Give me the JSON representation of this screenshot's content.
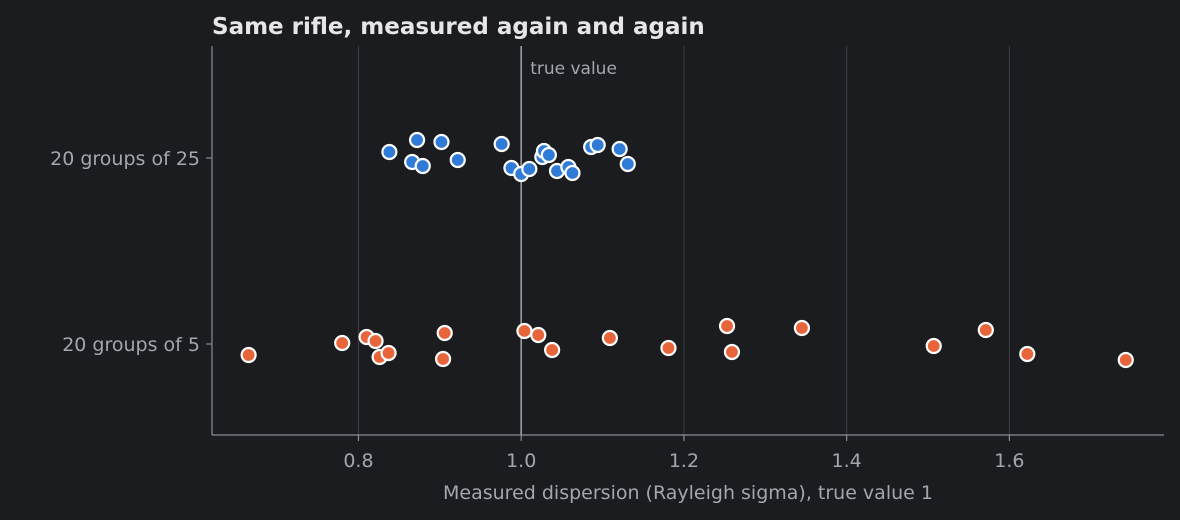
{
  "chart_data": {
    "type": "scatter",
    "title": "Same rifle, measured again and again",
    "xlabel": "Measured dispersion (Rayleigh sigma), true value 1",
    "ylabel": "",
    "xlim": [
      0.62,
      1.79
    ],
    "xticks": [
      0.8,
      1.0,
      1.2,
      1.4,
      1.6
    ],
    "xtick_labels": [
      "0.8",
      "1.0",
      "1.2",
      "1.4",
      "1.6"
    ],
    "categories": [
      "20 groups of 25",
      "20 groups of 5"
    ],
    "grid": "vertical",
    "reference_line": {
      "x": 1.0,
      "label": "true value"
    },
    "series": [
      {
        "category": "20 groups of 25",
        "color": "#2f7bd6",
        "values": [
          0.838,
          0.866,
          0.872,
          0.879,
          0.902,
          0.922,
          0.976,
          0.988,
          1.0,
          1.01,
          1.026,
          1.028,
          1.034,
          1.044,
          1.058,
          1.063,
          1.086,
          1.094,
          1.121,
          1.131
        ]
      },
      {
        "category": "20 groups of 5",
        "color": "#e8643a",
        "values": [
          0.665,
          0.78,
          0.81,
          0.821,
          0.826,
          0.837,
          0.904,
          0.906,
          1.004,
          1.021,
          1.038,
          1.109,
          1.181,
          1.253,
          1.259,
          1.345,
          1.507,
          1.571,
          1.622,
          1.743
        ]
      }
    ]
  }
}
